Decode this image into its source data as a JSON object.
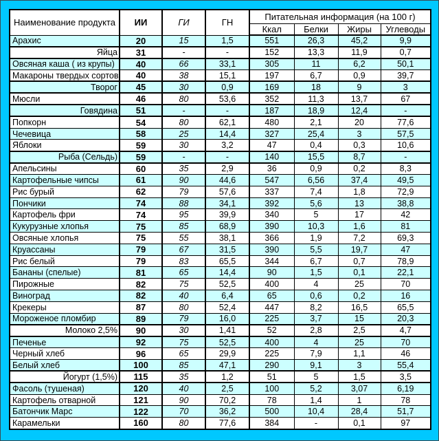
{
  "colors": {
    "page_bg": "#00C8FF",
    "row_alt": "#CCFFFF",
    "row": "#FFFFFF",
    "border": "#000000"
  },
  "table": {
    "header": {
      "product": "Наименование продукта",
      "ii": "ИИ",
      "gi": "ГИ",
      "gn": "ГН",
      "nutrition_group": "Питательная информация (на 100 г)",
      "sub": [
        "Ккал",
        "Белки",
        "Жиры",
        "Углеводы"
      ]
    },
    "rows": [
      {
        "name": "Арахис",
        "ii": "20",
        "gi": "15",
        "gn": "1,5",
        "kcal": "551",
        "protein": "26,3",
        "fat": "45,2",
        "carbs": "9,9",
        "special": false
      },
      {
        "name": "Яйца",
        "ii": "31",
        "gi": "-",
        "gn": "-",
        "kcal": "152",
        "protein": "13,3",
        "fat": "11,9",
        "carbs": "0,7",
        "special": true
      },
      {
        "name": "Овсяная каша ( из крупы)",
        "ii": "40",
        "gi": "66",
        "gn": "33,1",
        "kcal": "305",
        "protein": "11",
        "fat": "6,2",
        "carbs": "50,1",
        "special": false
      },
      {
        "name": "Макароны твердых сортов",
        "ii": "40",
        "gi": "38",
        "gn": "15,1",
        "kcal": "197",
        "protein": "6,7",
        "fat": "0,9",
        "carbs": "39,7",
        "special": false
      },
      {
        "name": "Творог",
        "ii": "45",
        "gi": "30",
        "gn": "0,9",
        "kcal": "169",
        "protein": "18",
        "fat": "9",
        "carbs": "3",
        "special": true
      },
      {
        "name": "Мюсли",
        "ii": "46",
        "gi": "80",
        "gn": "53,6",
        "kcal": "352",
        "protein": "11,3",
        "fat": "13,7",
        "carbs": "67",
        "special": false
      },
      {
        "name": "Говядина",
        "ii": "51",
        "gi": "-",
        "gn": "-",
        "kcal": "187",
        "protein": "18,9",
        "fat": "12,4",
        "carbs": "-",
        "special": true
      },
      {
        "name": "Попкорн",
        "ii": "54",
        "gi": "80",
        "gn": "62,1",
        "kcal": "480",
        "protein": "2,1",
        "fat": "20",
        "carbs": "77,6",
        "special": false
      },
      {
        "name": "Чечевица",
        "ii": "58",
        "gi": "25",
        "gn": "14,4",
        "kcal": "327",
        "protein": "25,4",
        "fat": "3",
        "carbs": "57,5",
        "special": false
      },
      {
        "name": "Яблоки",
        "ii": "59",
        "gi": "30",
        "gn": "3,2",
        "kcal": "47",
        "protein": "0,4",
        "fat": "0,3",
        "carbs": "10,6",
        "special": false
      },
      {
        "name": "Рыба (Сельдь)",
        "ii": "59",
        "gi": "-",
        "gn": "-",
        "kcal": "140",
        "protein": "15,5",
        "fat": "8,7",
        "carbs": "-",
        "special": true
      },
      {
        "name": "Апельсины",
        "ii": "60",
        "gi": "35",
        "gn": "2,9",
        "kcal": "36",
        "protein": "0,9",
        "fat": "0,2",
        "carbs": "8,3",
        "special": false
      },
      {
        "name": "Картофельные чипсы",
        "ii": "61",
        "gi": "90",
        "gn": "44,6",
        "kcal": "547",
        "protein": "6,56",
        "fat": "37,4",
        "carbs": "49,5",
        "special": false
      },
      {
        "name": "Рис бурый",
        "ii": "62",
        "gi": "79",
        "gn": "57,6",
        "kcal": "337",
        "protein": "7,4",
        "fat": "1,8",
        "carbs": "72,9",
        "special": false
      },
      {
        "name": "Пончики",
        "ii": "74",
        "gi": "88",
        "gn": "34,1",
        "kcal": "392",
        "protein": "5,6",
        "fat": "13",
        "carbs": "38,8",
        "special": false
      },
      {
        "name": "Картофель фри",
        "ii": "74",
        "gi": "95",
        "gn": "39,9",
        "kcal": "340",
        "protein": "5",
        "fat": "17",
        "carbs": "42",
        "special": false
      },
      {
        "name": "Кукурузные хлопья",
        "ii": "75",
        "gi": "85",
        "gn": "68,9",
        "kcal": "390",
        "protein": "10,3",
        "fat": "1,6",
        "carbs": "81",
        "special": false
      },
      {
        "name": "Овсяные хлопья",
        "ii": "75",
        "gi": "55",
        "gn": "38,1",
        "kcal": "366",
        "protein": "1,9",
        "fat": "7,2",
        "carbs": "69,3",
        "special": false
      },
      {
        "name": "Круассаны",
        "ii": "79",
        "gi": "67",
        "gn": "31,5",
        "kcal": "390",
        "protein": "5,5",
        "fat": "19,7",
        "carbs": "47",
        "special": false
      },
      {
        "name": "Рис белый",
        "ii": "79",
        "gi": "83",
        "gn": "65,5",
        "kcal": "344",
        "protein": "6,7",
        "fat": "0,7",
        "carbs": "78,9",
        "special": false
      },
      {
        "name": "Бананы (спелые)",
        "ii": "81",
        "gi": "65",
        "gn": "14,4",
        "kcal": "90",
        "protein": "1,5",
        "fat": "0,1",
        "carbs": "22,1",
        "special": false
      },
      {
        "name": "Пирожные",
        "ii": "82",
        "gi": "75",
        "gn": "52,5",
        "kcal": "400",
        "protein": "4",
        "fat": "25",
        "carbs": "70",
        "special": false
      },
      {
        "name": "Виноград",
        "ii": "82",
        "gi": "40",
        "gn": "6,4",
        "kcal": "65",
        "protein": "0,6",
        "fat": "0,2",
        "carbs": "16",
        "special": false
      },
      {
        "name": "Крекеры",
        "ii": "87",
        "gi": "80",
        "gn": "52,4",
        "kcal": "447",
        "protein": "8,2",
        "fat": "16,5",
        "carbs": "65,5",
        "special": false
      },
      {
        "name": "Мороженое пломбир",
        "ii": "89",
        "gi": "79",
        "gn": "16,0",
        "kcal": "225",
        "protein": "3,7",
        "fat": "15",
        "carbs": "20,3",
        "special": false
      },
      {
        "name": "Молоко 2,5%",
        "ii": "90",
        "gi": "30",
        "gn": "1,41",
        "kcal": "52",
        "protein": "2,8",
        "fat": "2,5",
        "carbs": "4,7",
        "special": true
      },
      {
        "name": "Печенье",
        "ii": "92",
        "gi": "75",
        "gn": "52,5",
        "kcal": "400",
        "protein": "4",
        "fat": "25",
        "carbs": "70",
        "special": false
      },
      {
        "name": "Черный хлеб",
        "ii": "96",
        "gi": "65",
        "gn": "29,9",
        "kcal": "225",
        "protein": "7,9",
        "fat": "1,1",
        "carbs": "46",
        "special": false
      },
      {
        "name": "Белый хлеб",
        "ii": "100",
        "gi": "85",
        "gn": "47,1",
        "kcal": "290",
        "protein": "9,1",
        "fat": "3",
        "carbs": "55,4",
        "special": false
      },
      {
        "name": "Йогурт (1,5%)",
        "ii": "115",
        "gi": "35",
        "gn": "1,2",
        "kcal": "51",
        "protein": "5",
        "fat": "1,5",
        "carbs": "3,5",
        "special": true
      },
      {
        "name": "Фасоль (тушеная)",
        "ii": "120",
        "gi": "40",
        "gn": "2,5",
        "kcal": "100",
        "protein": "5,2",
        "fat": "3,07",
        "carbs": "6,19",
        "special": false
      },
      {
        "name": "Картофель отварной",
        "ii": "121",
        "gi": "90",
        "gn": "70,2",
        "kcal": "78",
        "protein": "1,4",
        "fat": "1",
        "carbs": "78",
        "special": false
      },
      {
        "name": "Батончик Марс",
        "ii": "122",
        "gi": "70",
        "gn": "36,2",
        "kcal": "500",
        "protein": "10,4",
        "fat": "28,4",
        "carbs": "51,7",
        "special": false
      },
      {
        "name": "Карамельки",
        "ii": "160",
        "gi": "80",
        "gn": "77,6",
        "kcal": "384",
        "protein": "-",
        "fat": "0,1",
        "carbs": "97",
        "special": false
      }
    ]
  }
}
